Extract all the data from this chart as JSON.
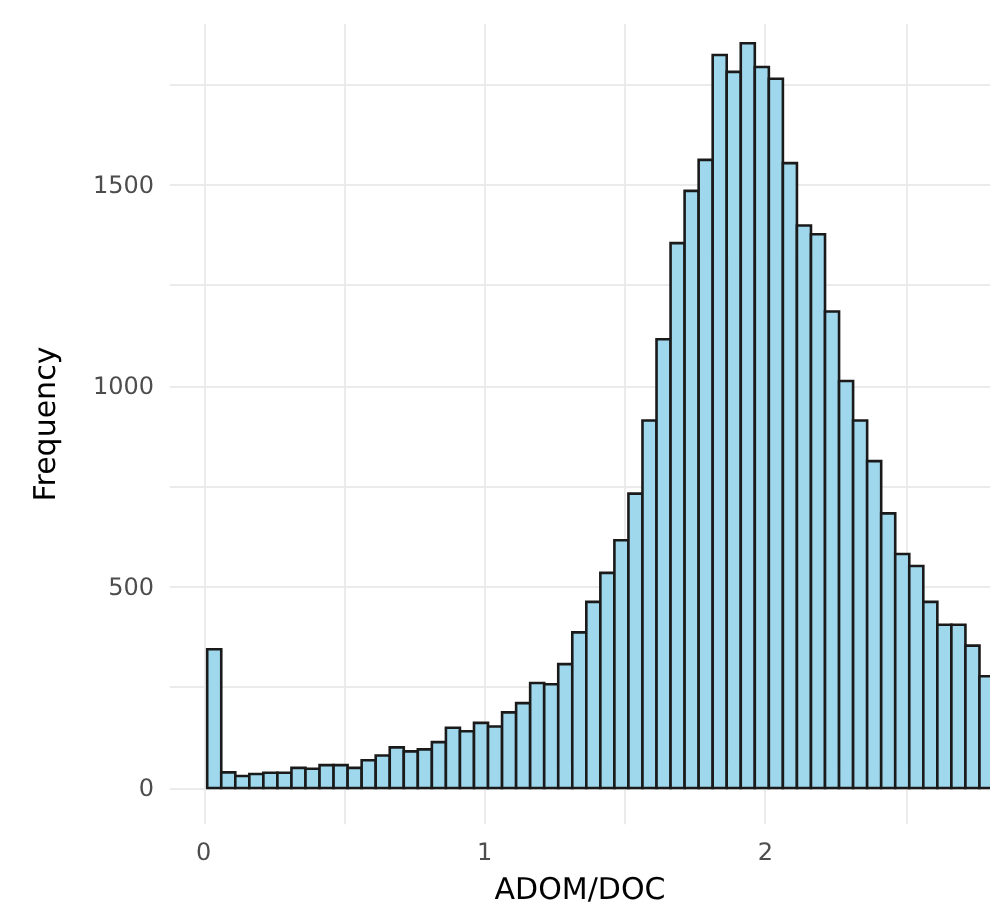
{
  "chart_data": {
    "type": "histogram",
    "xlabel": "ADOM/DOC",
    "ylabel": "Frequency",
    "color": "#9fd8ec",
    "bins": [
      0.0125,
      0.0625,
      0.1125,
      0.1625,
      0.2125,
      0.2625,
      0.3125,
      0.3625,
      0.4125,
      0.4625,
      0.5125,
      0.5625,
      0.6125,
      0.6625,
      0.7125,
      0.7625,
      0.8125,
      0.8625,
      0.9125,
      0.9625,
      1.0125,
      1.0625,
      1.1125,
      1.1625,
      1.2125,
      1.2625,
      1.3125,
      1.3625,
      1.4125,
      1.4625,
      1.5125,
      1.5625,
      1.6125,
      1.6625,
      1.7125,
      1.7625,
      1.8125,
      1.8625,
      1.9125,
      1.9625,
      2.0125,
      2.0625,
      2.1125,
      2.1625,
      2.2125,
      2.2625,
      2.3125,
      2.3625,
      2.4125,
      2.4625,
      2.5125,
      2.5625,
      2.6125,
      2.6625,
      2.7125,
      2.7625,
      2.8125
    ],
    "values": [
      345,
      39,
      30,
      35,
      38,
      38,
      50,
      48,
      57,
      57,
      50,
      69,
      81,
      101,
      91,
      96,
      114,
      150,
      141,
      162,
      153,
      188,
      211,
      261,
      258,
      308,
      387,
      463,
      535,
      616,
      732,
      914,
      1116,
      1355,
      1485,
      1562,
      1823,
      1781,
      1852,
      1793,
      1764,
      1554,
      1399,
      1377,
      1185,
      1012,
      914,
      813,
      683,
      582,
      552,
      463,
      406,
      406,
      354,
      278
    ],
    "xlim": [
      -0.12,
      2.8
    ],
    "ylim": [
      -90,
      1900
    ],
    "xticks": [
      0,
      {
        "value": 0.5,
        "label": null
      },
      1,
      {
        "value": 1.5,
        "label": null
      },
      2,
      {
        "value": 2.5,
        "label": null
      }
    ],
    "yticks": [
      0,
      {
        "value": 250,
        "label": null
      },
      500,
      {
        "value": 750,
        "label": null
      },
      1000,
      {
        "value": 1250,
        "label": null
      },
      1500,
      {
        "value": 1750,
        "label": null
      }
    ],
    "grid": true
  }
}
